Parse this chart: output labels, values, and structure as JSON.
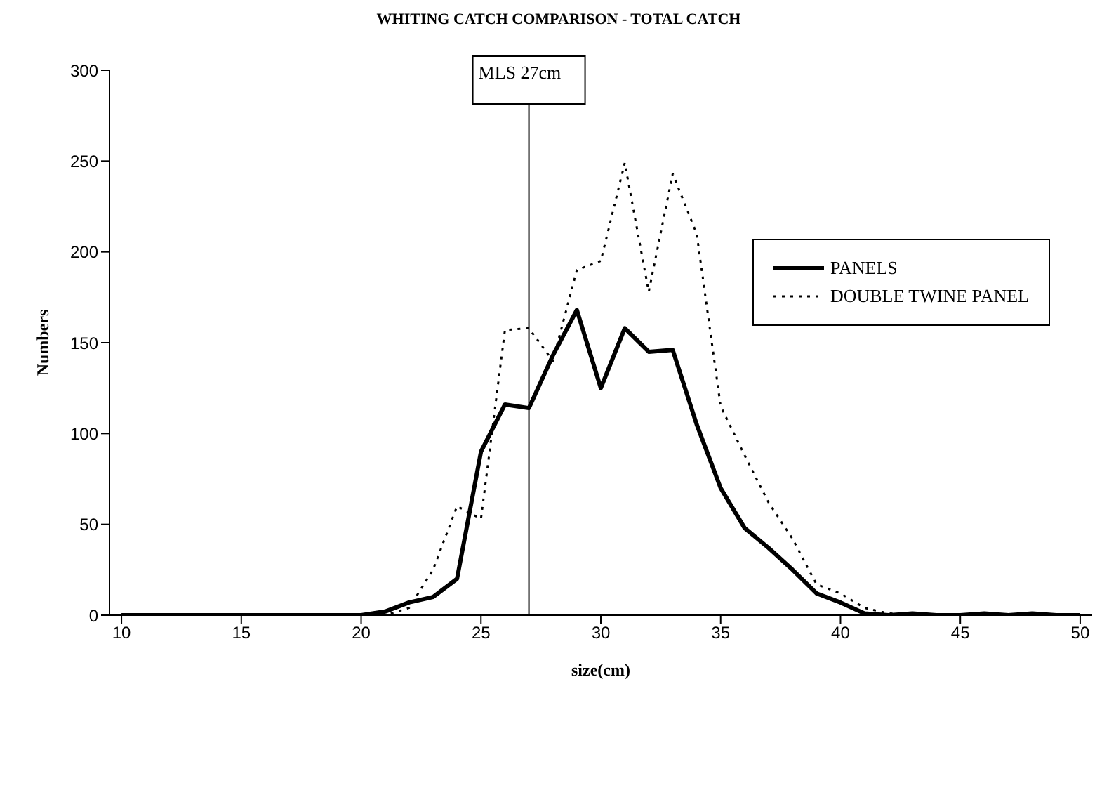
{
  "chart_data": {
    "type": "line",
    "title": "WHITING CATCH COMPARISON - TOTAL CATCH",
    "xlabel": "size(cm)",
    "ylabel": "Numbers",
    "x": [
      10,
      11,
      12,
      13,
      14,
      15,
      16,
      17,
      18,
      19,
      20,
      21,
      22,
      23,
      24,
      25,
      26,
      27,
      28,
      29,
      30,
      31,
      32,
      33,
      34,
      35,
      36,
      37,
      38,
      39,
      40,
      41,
      42,
      43,
      44,
      45,
      46,
      47,
      48,
      49,
      50
    ],
    "series": [
      {
        "name": "PANELS",
        "color": "#000000",
        "line_style": "solid",
        "values": [
          0,
          0,
          0,
          0,
          0,
          0,
          0,
          0,
          0,
          0,
          0,
          2,
          7,
          10,
          20,
          90,
          116,
          114,
          143,
          168,
          125,
          158,
          145,
          146,
          105,
          70,
          48,
          37,
          25,
          12,
          7,
          1,
          0,
          1,
          0,
          0,
          1,
          0,
          1,
          0,
          0
        ]
      },
      {
        "name": "DOUBLE TWINE PANEL",
        "color": "#000000",
        "line_style": "dotted",
        "values": [
          0,
          0,
          0,
          0,
          0,
          0,
          0,
          0,
          0,
          0,
          0,
          0,
          4,
          25,
          60,
          53,
          157,
          158,
          140,
          190,
          195,
          249,
          178,
          243,
          210,
          115,
          88,
          62,
          42,
          17,
          12,
          4,
          1,
          0,
          0,
          0,
          0,
          0,
          0,
          0,
          0
        ]
      }
    ],
    "xlim": [
      9.5,
      50.5
    ],
    "xticks": [
      10,
      15,
      20,
      25,
      30,
      35,
      40,
      45,
      50
    ],
    "ylim": [
      0,
      300
    ],
    "yticks": [
      0,
      50,
      100,
      150,
      200,
      250,
      300
    ],
    "ref_lines": [
      {
        "axis": "x",
        "value": 27,
        "label": "MLS 27cm",
        "color": "#000000"
      }
    ],
    "grid": false,
    "legend": "right",
    "marker": "none"
  }
}
